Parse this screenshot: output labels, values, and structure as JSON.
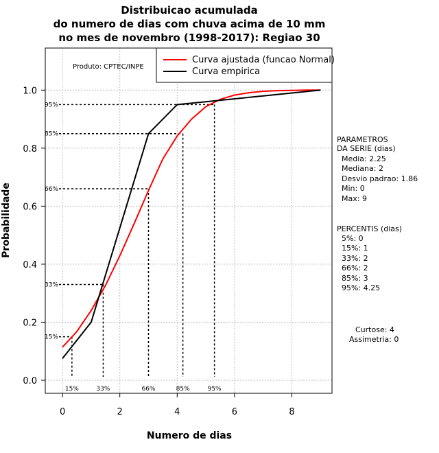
{
  "chart_data": {
    "type": "line",
    "title_lines": [
      "Distribuicao acumulada",
      "do numero de dias com chuva acima de 10 mm",
      "no mes de novembro (1998-2017): Regiao 30"
    ],
    "xlabel": "Numero de dias",
    "ylabel": "Probabilidade",
    "xlim": [
      -0.6,
      9.4
    ],
    "ylim": [
      -0.045,
      1.145
    ],
    "x_ticks": [
      0,
      2,
      4,
      6,
      8
    ],
    "y_ticks": [
      0.0,
      0.2,
      0.4,
      0.6,
      0.8,
      1.0
    ],
    "x_tick_labels": [
      "0",
      "2",
      "4",
      "6",
      "8"
    ],
    "y_tick_labels": [
      "0.0",
      "0.2",
      "0.4",
      "0.6",
      "0.8",
      "1.0"
    ],
    "grid": true,
    "legend_position": "top-right",
    "series": [
      {
        "name": "Curva ajustada (funcao Normal)",
        "color": "#ff0000",
        "x": [
          0,
          0.5,
          1,
          1.5,
          2,
          2.5,
          3,
          3.5,
          4,
          4.5,
          5,
          5.5,
          6,
          6.5,
          7,
          7.5,
          8,
          8.5,
          9
        ],
        "y": [
          0.114,
          0.168,
          0.24,
          0.327,
          0.429,
          0.54,
          0.654,
          0.763,
          0.842,
          0.9,
          0.943,
          0.968,
          0.983,
          0.991,
          0.996,
          0.998,
          0.999,
          1.0,
          1.0
        ]
      },
      {
        "name": "Curva empirica",
        "color": "#000000",
        "x": [
          0,
          1,
          2,
          3,
          4,
          5,
          6,
          7,
          8,
          9
        ],
        "y": [
          0.075,
          0.2,
          0.525,
          0.85,
          0.95,
          0.96,
          0.97,
          0.98,
          0.99,
          1.0
        ]
      }
    ],
    "percentile_lines": [
      {
        "y": 0.15,
        "x": 0.33,
        "y_label": "15%",
        "x_label": "15%"
      },
      {
        "y": 0.33,
        "x": 1.42,
        "y_label": "33%",
        "x_label": "33%"
      },
      {
        "y": 0.66,
        "x": 3.0,
        "y_label": "66%",
        "x_label": "66%"
      },
      {
        "y": 0.85,
        "x": 4.2,
        "y_label": "85%",
        "x_label": "85%"
      },
      {
        "y": 0.95,
        "x": 5.3,
        "y_label": "95%",
        "x_label": "95%"
      }
    ]
  },
  "produto": "Produto: CPTEC/INPE",
  "legend": {
    "fitted": "Curva ajustada (funcao Normal)",
    "empirical": "Curva empirica"
  },
  "parametros": {
    "header": [
      "PARAMETROS",
      "DA SERIE (dias)"
    ],
    "lines": [
      "Media: 2.25",
      "Mediana: 2",
      "Desvio padrao: 1.86",
      "Min: 0",
      "Max: 9"
    ]
  },
  "percentis": {
    "header": "PERCENTIS (dias)",
    "lines": [
      "5%: 0",
      "15%: 1",
      "33%: 2",
      "66%: 2",
      "85%: 3",
      "95%: 4.25"
    ]
  },
  "extra": {
    "curtose": "Curtose: 4",
    "assimetria": "Assimetria: 0"
  },
  "colors": {
    "fitted": "#ff0000",
    "empirical": "#000000",
    "grid": "#bebebe"
  }
}
